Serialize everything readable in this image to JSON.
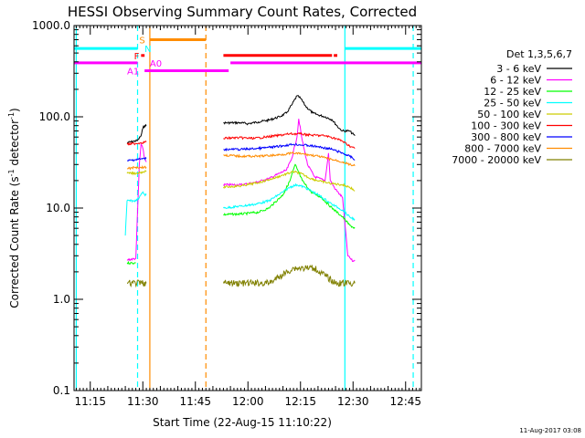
{
  "chart_data": {
    "type": "line",
    "title": "HESSI Observing Summary Count Rates, Corrected",
    "xlabel": "Start Time (22-Aug-15 11:10:22)",
    "ylabel_main": "Corrected Count Rate (s",
    "ylabel_sup1": "-1",
    "ylabel_mid": " detector",
    "ylabel_sup2": "-1",
    "ylabel_end": ")",
    "ylim": [
      0.1,
      1000
    ],
    "yscale": "log",
    "xlim_minutes": [
      10.37,
      49.5
    ],
    "xlim": [
      "11:10:22",
      "12:49:30"
    ],
    "x_ticks": [
      "11:15",
      "11:30",
      "11:45",
      "12:00",
      "12:15",
      "12:30",
      "12:45"
    ],
    "y_ticks": [
      "0.1",
      "1.0",
      "10.0",
      "100.0",
      "1000.0"
    ],
    "legend_title": "Det 1,3,5,6,7",
    "legend_position": "right",
    "timestamp": "11-Aug-2017 03:08",
    "series": [
      {
        "name": "3 - 6 keV",
        "color": "#000000",
        "segments": [
          [
            [
              "11:25:30",
              52
            ],
            [
              "11:28:30",
              55
            ],
            [
              "11:29:30",
              62
            ],
            [
              "11:30:00",
              75
            ],
            [
              "11:30:30",
              80
            ],
            [
              "11:31:00",
              80
            ]
          ],
          [
            [
              "11:53:00",
              86
            ],
            [
              "11:58:00",
              86
            ],
            [
              "12:00:00",
              84
            ],
            [
              "12:03:00",
              88
            ],
            [
              "12:06:00",
              92
            ],
            [
              "12:09:00",
              100
            ],
            [
              "12:11:00",
              110
            ],
            [
              "12:12:30",
              135
            ],
            [
              "12:14:00",
              170
            ],
            [
              "12:15:00",
              160
            ],
            [
              "12:16:30",
              130
            ],
            [
              "12:18:30",
              110
            ],
            [
              "12:20:00",
              105
            ],
            [
              "12:22:00",
              100
            ],
            [
              "12:24:00",
              93
            ],
            [
              "12:26:00",
              75
            ],
            [
              "12:27:00",
              70
            ],
            [
              "12:29:00",
              70
            ],
            [
              "12:30:30",
              62
            ]
          ]
        ]
      },
      {
        "name": "6 - 12 keV",
        "color": "#ff00ff",
        "segments": [
          [
            [
              "11:25:30",
              2.7
            ],
            [
              "11:28:00",
              2.8
            ],
            [
              "11:29:00",
              30
            ],
            [
              "11:29:30",
              50
            ],
            [
              "11:30:00",
              45
            ],
            [
              "11:30:30",
              35
            ],
            [
              "11:31:00",
              32
            ]
          ],
          [
            [
              "11:53:00",
              18
            ],
            [
              "11:58:00",
              18
            ],
            [
              "12:02:00",
              19
            ],
            [
              "12:06:00",
              21
            ],
            [
              "12:09:00",
              24
            ],
            [
              "12:11:00",
              26
            ],
            [
              "12:12:30",
              35
            ],
            [
              "12:14:00",
              60
            ],
            [
              "12:14:30",
              95
            ],
            [
              "12:15:30",
              55
            ],
            [
              "12:17:00",
              30
            ],
            [
              "12:19:00",
              22
            ],
            [
              "12:22:00",
              20
            ],
            [
              "12:23:00",
              40
            ],
            [
              "12:23:30",
              20
            ],
            [
              "12:25:00",
              16
            ],
            [
              "12:27:00",
              13
            ],
            [
              "12:28:30",
              3.0
            ],
            [
              "12:30:00",
              2.6
            ],
            [
              "12:30:30",
              2.7
            ]
          ]
        ]
      },
      {
        "name": "12 - 25 keV",
        "color": "#00ff00",
        "segments": [
          [
            [
              "11:25:30",
              2.5
            ],
            [
              "11:28:00",
              2.5
            ]
          ],
          [
            [
              "11:53:00",
              8.5
            ],
            [
              "11:58:00",
              8.6
            ],
            [
              "12:03:00",
              9.0
            ],
            [
              "12:06:00",
              10
            ],
            [
              "12:10:00",
              14
            ],
            [
              "12:12:00",
              20
            ],
            [
              "12:13:30",
              30
            ],
            [
              "12:14:00",
              27
            ],
            [
              "12:15:30",
              20
            ],
            [
              "12:18:00",
              15
            ],
            [
              "12:21:00",
              13
            ],
            [
              "12:24:00",
              10
            ],
            [
              "12:27:00",
              8
            ],
            [
              "12:29:00",
              6.5
            ],
            [
              "12:30:30",
              6.0
            ]
          ]
        ]
      },
      {
        "name": "25 - 50 keV",
        "color": "#00ffff",
        "segments": [
          [
            [
              "11:25:00",
              5.0
            ],
            [
              "11:25:30",
              12
            ],
            [
              "11:28:00",
              12
            ],
            [
              "11:29:00",
              13
            ],
            [
              "11:30:00",
              15
            ],
            [
              "11:30:30",
              14
            ],
            [
              "11:31:00",
              14
            ]
          ],
          [
            [
              "11:53:00",
              10
            ],
            [
              "11:58:00",
              10.5
            ],
            [
              "12:02:00",
              11
            ],
            [
              "12:06:00",
              12
            ],
            [
              "12:10:00",
              15
            ],
            [
              "12:12:00",
              17
            ],
            [
              "12:14:00",
              18
            ],
            [
              "12:16:00",
              17
            ],
            [
              "12:20:00",
              14
            ],
            [
              "12:24:00",
              11
            ],
            [
              "12:27:00",
              9.5
            ],
            [
              "12:29:00",
              8
            ],
            [
              "12:30:30",
              7.5
            ]
          ]
        ]
      },
      {
        "name": "50 - 100 keV",
        "color": "#cccc00",
        "segments": [
          [
            [
              "11:25:30",
              24
            ],
            [
              "11:28:00",
              24
            ],
            [
              "11:30:00",
              25
            ],
            [
              "11:31:00",
              25
            ]
          ],
          [
            [
              "11:53:00",
              17
            ],
            [
              "11:58:00",
              17.5
            ],
            [
              "12:03:00",
              19
            ],
            [
              "12:07:00",
              21
            ],
            [
              "12:10:00",
              23
            ],
            [
              "12:13:00",
              25
            ],
            [
              "12:15:00",
              24
            ],
            [
              "12:18:00",
              21
            ],
            [
              "12:21:00",
              19.5
            ],
            [
              "12:24:00",
              18.5
            ],
            [
              "12:27:00",
              18
            ],
            [
              "12:29:00",
              17
            ],
            [
              "12:30:30",
              15.5
            ]
          ]
        ]
      },
      {
        "name": "100 - 300 keV",
        "color": "#ff0000",
        "segments": [
          [
            [
              "11:25:30",
              50
            ],
            [
              "11:28:00",
              51
            ],
            [
              "11:29:30",
              52
            ],
            [
              "11:31:00",
              53
            ]
          ],
          [
            [
              "11:53:00",
              58
            ],
            [
              "11:57:00",
              59
            ],
            [
              "12:02:00",
              58
            ],
            [
              "12:05:00",
              60
            ],
            [
              "12:08:00",
              62
            ],
            [
              "12:12:00",
              65
            ],
            [
              "12:15:00",
              65
            ],
            [
              "12:18:00",
              63
            ],
            [
              "12:22:00",
              62
            ],
            [
              "12:25:00",
              58
            ],
            [
              "12:27:00",
              54
            ],
            [
              "12:29:00",
              48
            ],
            [
              "12:30:30",
              45
            ]
          ]
        ]
      },
      {
        "name": "300 - 800 keV",
        "color": "#0000ff",
        "segments": [
          [
            [
              "11:25:30",
              33
            ],
            [
              "11:28:00",
              34
            ],
            [
              "11:31:00",
              35
            ]
          ],
          [
            [
              "11:53:00",
              44
            ],
            [
              "11:58:00",
              44
            ],
            [
              "12:03:00",
              45
            ],
            [
              "12:08:00",
              47
            ],
            [
              "12:13:00",
              50
            ],
            [
              "12:16:00",
              49
            ],
            [
              "12:20:00",
              47
            ],
            [
              "12:24:00",
              44
            ],
            [
              "12:27:00",
              40
            ],
            [
              "12:29:00",
              37
            ],
            [
              "12:30:30",
              34
            ]
          ]
        ]
      },
      {
        "name": "800 - 7000 keV",
        "color": "#ff8c00",
        "segments": [
          [
            [
              "11:25:30",
              27
            ],
            [
              "11:28:00",
              28
            ],
            [
              "11:31:00",
              28
            ]
          ],
          [
            [
              "11:53:00",
              38
            ],
            [
              "11:58:00",
              37
            ],
            [
              "12:03:00",
              37
            ],
            [
              "12:08:00",
              38
            ],
            [
              "12:13:00",
              40
            ],
            [
              "12:16:00",
              39
            ],
            [
              "12:20:00",
              37
            ],
            [
              "12:24:00",
              34
            ],
            [
              "12:27:00",
              32
            ],
            [
              "12:29:00",
              30
            ],
            [
              "12:30:30",
              29
            ]
          ]
        ]
      },
      {
        "name": "7000 - 20000 keV",
        "color": "#808000",
        "segments": [
          [
            [
              "11:25:30",
              1.5
            ],
            [
              "11:31:00",
              1.5
            ]
          ],
          [
            [
              "11:53:00",
              1.5
            ],
            [
              "12:06:00",
              1.5
            ],
            [
              "12:13:00",
              2.2
            ],
            [
              "12:19:00",
              2.2
            ],
            [
              "12:25:00",
              1.5
            ],
            [
              "12:30:30",
              1.5
            ]
          ]
        ]
      }
    ],
    "annotations": {
      "flags": [
        {
          "label": "S",
          "color": "#ff8c00",
          "level": 700,
          "segments": [
            [
              "11:32:00",
              "11:48:00"
            ]
          ],
          "label_at": "11:29:00"
        },
        {
          "label": "N",
          "color": "#00ffff",
          "level": 560,
          "segments": [
            [
              "11:10:22",
              "11:28:30"
            ],
            [
              "12:27:40",
              "12:49:30"
            ]
          ],
          "label_at": "11:30:30"
        },
        {
          "label": "F",
          "color": "#ff0000",
          "level": 470,
          "segments": [
            [
              "11:29:30",
              "11:30:30"
            ],
            [
              "11:53:00",
              "12:24:00"
            ],
            [
              "12:24:30",
              "12:25:30"
            ]
          ],
          "label_at": "11:27:30"
        },
        {
          "label": "A0",
          "color": "#ff00ff",
          "level": 390,
          "segments": [
            [
              "11:10:22",
              "11:28:30"
            ],
            [
              "11:55:00",
              "12:49:30"
            ]
          ],
          "label_at": "11:32:00"
        },
        {
          "label": "A1",
          "color": "#ff00ff",
          "level": 320,
          "segments": [
            [
              "11:30:30",
              "11:54:30"
            ]
          ],
          "label_at": "11:25:30"
        }
      ],
      "vlines": [
        {
          "time": "11:11:00",
          "color": "#00ffff",
          "style": "solid"
        },
        {
          "time": "11:28:30",
          "color": "#00ffff",
          "style": "dashed"
        },
        {
          "time": "11:32:00",
          "color": "#ff8c00",
          "style": "solid"
        },
        {
          "time": "11:48:00",
          "color": "#ff8c00",
          "style": "dashed"
        },
        {
          "time": "12:27:40",
          "color": "#00ffff",
          "style": "solid"
        },
        {
          "time": "12:47:10",
          "color": "#00ffff",
          "style": "dashed"
        }
      ]
    }
  }
}
